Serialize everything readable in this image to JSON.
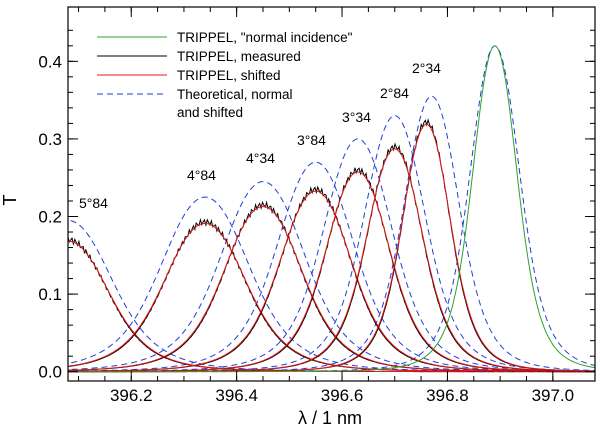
{
  "chart_data": {
    "type": "line",
    "xlabel": "λ / 1 nm",
    "ylabel": "T",
    "xlim": [
      396.08,
      397.08
    ],
    "ylim": [
      -0.012,
      0.47
    ],
    "xticks": [
      396.2,
      396.4,
      396.6,
      396.8,
      397.0
    ],
    "xtick_labels": [
      "396.2",
      "396.4",
      "396.6",
      "396.8",
      "397.0"
    ],
    "yticks": [
      0.0,
      0.1,
      0.2,
      0.3,
      0.4
    ],
    "ytick_labels": [
      "0.0",
      "0.1",
      "0.2",
      "0.3",
      "0.4"
    ],
    "legend_position": "top-left",
    "legend": [
      {
        "label": "TRIPPEL, \"normal incidence\"",
        "color": "#2ca02c",
        "style": "solid"
      },
      {
        "label": "TRIPPEL, measured",
        "color": "#000000",
        "style": "solid"
      },
      {
        "label": "TRIPPEL, shifted",
        "color": "#e41a1c",
        "style": "solid"
      },
      {
        "label": "Theoretical, normal",
        "label2": "and shifted",
        "color": "#1f3fd6",
        "style": "dashed"
      }
    ],
    "filters": [
      {
        "angle": "5°84",
        "theo_center": 396.08,
        "theo_peak": 0.195,
        "meas_center": 396.08,
        "meas_peak": 0.17,
        "theo_width": 0.115,
        "meas_width": 0.105
      },
      {
        "angle": "4°84",
        "theo_center": 396.34,
        "theo_peak": 0.225,
        "meas_center": 396.34,
        "meas_peak": 0.193,
        "theo_width": 0.115,
        "meas_width": 0.105
      },
      {
        "angle": "4°34",
        "theo_center": 396.45,
        "theo_peak": 0.245,
        "meas_center": 396.45,
        "meas_peak": 0.215,
        "theo_width": 0.11,
        "meas_width": 0.1
      },
      {
        "angle": "3°84",
        "theo_center": 396.55,
        "theo_peak": 0.27,
        "meas_center": 396.55,
        "meas_peak": 0.235,
        "theo_width": 0.1,
        "meas_width": 0.092
      },
      {
        "angle": "3°34",
        "theo_center": 396.63,
        "theo_peak": 0.3,
        "meas_center": 396.63,
        "meas_peak": 0.26,
        "theo_width": 0.09,
        "meas_width": 0.082
      },
      {
        "angle": "2°84",
        "theo_center": 396.7,
        "theo_peak": 0.33,
        "meas_center": 396.7,
        "meas_peak": 0.29,
        "theo_width": 0.08,
        "meas_width": 0.072
      },
      {
        "angle": "2°34",
        "theo_center": 396.77,
        "theo_peak": 0.355,
        "meas_center": 396.76,
        "meas_peak": 0.322,
        "theo_width": 0.072,
        "meas_width": 0.062
      }
    ],
    "normal": {
      "theo_center": 396.89,
      "theo_peak": 0.42,
      "meas_center": 396.89,
      "meas_peak": 0.42,
      "theo_width": 0.065,
      "meas_width": 0.058
    }
  }
}
